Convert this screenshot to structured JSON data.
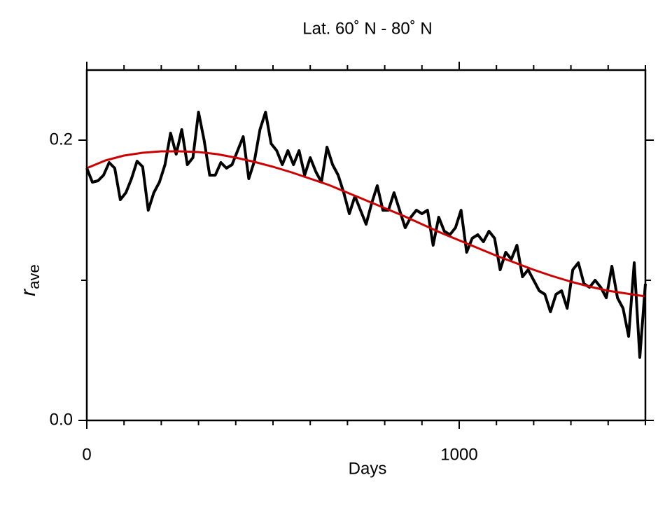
{
  "chart_data": {
    "type": "line",
    "title": "Lat. 60˚ N - 80˚ N",
    "xlabel": "Days",
    "ylabel": "r",
    "ylabel_sub": "ave",
    "xlim": [
      0,
      1500
    ],
    "ylim": [
      0,
      0.25
    ],
    "xticks": [
      0,
      1000
    ],
    "xminor_ticks": [
      100,
      200,
      300,
      400,
      500,
      600,
      700,
      800,
      900,
      1100,
      1200,
      1300,
      1400,
      1500
    ],
    "yticks": [
      {
        "value": 0,
        "label": "0.0"
      },
      {
        "value": 0.2,
        "label": "0.2"
      }
    ],
    "yminor_ticks": [
      0.1
    ],
    "series": [
      {
        "color": "#000000",
        "x": [
          0,
          15,
          30,
          45,
          60,
          75,
          90,
          105,
          120,
          135,
          150,
          165,
          180,
          195,
          210,
          225,
          240,
          255,
          270,
          285,
          300,
          315,
          330,
          345,
          360,
          375,
          390,
          405,
          420,
          435,
          450,
          465,
          480,
          495,
          510,
          525,
          540,
          555,
          570,
          585,
          600,
          615,
          630,
          645,
          660,
          675,
          690,
          705,
          720,
          735,
          750,
          765,
          780,
          795,
          810,
          825,
          840,
          855,
          870,
          885,
          900,
          915,
          930,
          945,
          960,
          975,
          990,
          1005,
          1020,
          1035,
          1050,
          1065,
          1080,
          1095,
          1110,
          1125,
          1140,
          1155,
          1170,
          1185,
          1200,
          1215,
          1230,
          1245,
          1260,
          1275,
          1290,
          1305,
          1320,
          1335,
          1350,
          1365,
          1380,
          1395,
          1410,
          1425,
          1440,
          1455,
          1470,
          1485,
          1500
        ],
        "values": [
          0.18,
          0.17,
          0.171,
          0.175,
          0.184,
          0.18,
          0.1575,
          0.1625,
          0.1725,
          0.185,
          0.181,
          0.15,
          0.1625,
          0.17,
          0.1825,
          0.205,
          0.19,
          0.2075,
          0.1825,
          0.1875,
          0.22,
          0.2,
          0.175,
          0.175,
          0.184,
          0.18,
          0.1825,
          0.1925,
          0.2025,
          0.1725,
          0.185,
          0.2075,
          0.22,
          0.1975,
          0.1925,
          0.1825,
          0.1925,
          0.1825,
          0.1925,
          0.175,
          0.1875,
          0.1775,
          0.17,
          0.195,
          0.1825,
          0.175,
          0.1625,
          0.1475,
          0.16,
          0.15,
          0.14,
          0.155,
          0.1675,
          0.15,
          0.15,
          0.1625,
          0.15,
          0.1375,
          0.145,
          0.15,
          0.1475,
          0.15,
          0.125,
          0.145,
          0.135,
          0.1325,
          0.1375,
          0.15,
          0.12,
          0.13,
          0.1325,
          0.1275,
          0.135,
          0.13,
          0.1075,
          0.12,
          0.115,
          0.125,
          0.1025,
          0.1075,
          0.1,
          0.0925,
          0.09,
          0.0775,
          0.09,
          0.0925,
          0.08,
          0.1075,
          0.1125,
          0.0975,
          0.095,
          0.1,
          0.095,
          0.0875,
          0.11,
          0.0875,
          0.08,
          0.06,
          0.1125,
          0.045,
          0.0975
        ]
      },
      {
        "color": "#cc0000",
        "x": [
          0,
          50,
          100,
          150,
          200,
          250,
          300,
          350,
          400,
          450,
          500,
          550,
          600,
          650,
          700,
          750,
          800,
          850,
          900,
          950,
          1000,
          1050,
          1100,
          1150,
          1200,
          1250,
          1300,
          1350,
          1400,
          1450,
          1500
        ],
        "values": [
          0.18,
          0.1855,
          0.189,
          0.191,
          0.192,
          0.192,
          0.1915,
          0.19,
          0.1875,
          0.1845,
          0.181,
          0.177,
          0.1725,
          0.168,
          0.1625,
          0.157,
          0.1515,
          0.146,
          0.14,
          0.134,
          0.1285,
          0.123,
          0.1175,
          0.1125,
          0.1075,
          0.103,
          0.099,
          0.0955,
          0.0925,
          0.0905,
          0.0885
        ]
      }
    ]
  }
}
